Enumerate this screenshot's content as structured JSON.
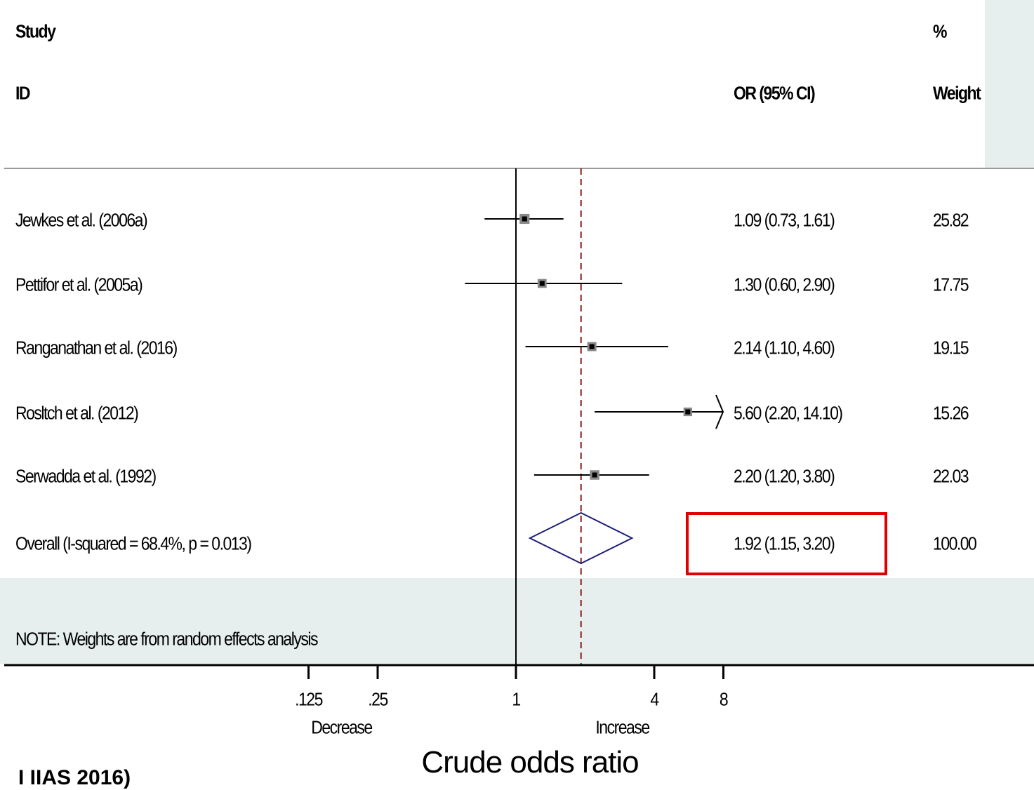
{
  "header": {
    "study": "Study",
    "id": "ID",
    "or_ci": "OR (95% CI)",
    "percent": "%",
    "weight": "Weight"
  },
  "chart_data": {
    "type": "forest",
    "x_scale": "log2",
    "reference_line": 1,
    "overall_line": 1.92,
    "xtick_labels": [
      ".125",
      ".25",
      "1",
      "4",
      "8"
    ],
    "xtick_values": [
      0.125,
      0.25,
      1,
      4,
      8
    ],
    "direction_labels": {
      "left": "Decrease",
      "right": "Increase"
    },
    "xlabel": "Crude odds ratio",
    "studies": [
      {
        "name": "Jewkes et al. (2006a)",
        "or": 1.09,
        "lower": 0.73,
        "upper": 1.61,
        "stat": "1.09  (0.73, 1.61)",
        "weight": "25.82",
        "weight_value": 25.82
      },
      {
        "name": "Pettifor  et al. (2005a)",
        "or": 1.3,
        "lower": 0.6,
        "upper": 2.9,
        "stat": "1.30  (0.60, 2.90)",
        "weight": "17.75",
        "weight_value": 17.75
      },
      {
        "name": "Ranganathan  et al. (2016)",
        "or": 2.14,
        "lower": 1.1,
        "upper": 4.6,
        "stat": "2.14  (1.10, 4.60)",
        "weight": "19.15",
        "weight_value": 19.15
      },
      {
        "name": "Rosltch et al. (2012)",
        "or": 5.6,
        "lower": 2.2,
        "upper": 14.1,
        "stat": "5.60  (2.20, 14.10)",
        "weight": "15.26",
        "weight_value": 15.26,
        "clipped_upper": true
      },
      {
        "name": "Serwadda  et al. (1992)",
        "or": 2.2,
        "lower": 1.2,
        "upper": 3.8,
        "stat": "2.20  (1.20, 3.80)",
        "weight": "22.03",
        "weight_value": 22.03
      }
    ],
    "overall": {
      "name": "Overall  (I-squared = 68.4%,  p = 0.013)",
      "or": 1.92,
      "lower": 1.15,
      "upper": 3.2,
      "stat": "1.92  (1.15, 3.20)",
      "weight": "100.00"
    },
    "note": "NOTE: Weights are from random effects analysis"
  },
  "corner_text": "I IIAS 2016)",
  "colors": {
    "diamond": "#1f1f7a",
    "overall_line": "#8b1a1a",
    "highlight_box": "#e00000",
    "marker": "#888888",
    "panel": "#e6eeee"
  }
}
